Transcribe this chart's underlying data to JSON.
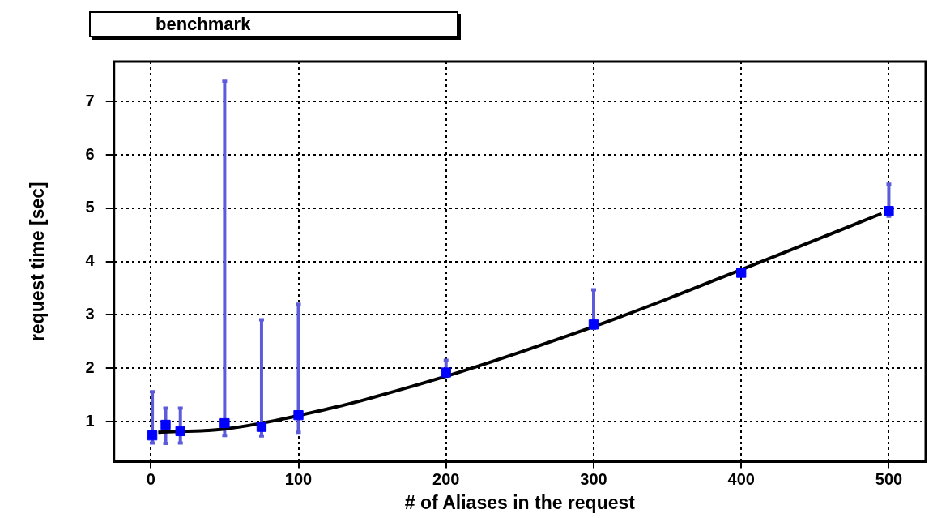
{
  "chart_data": {
    "type": "scatter",
    "title": "benchmark",
    "xlabel": "# of Aliases in the request",
    "ylabel": "request time [sec]",
    "xlim": [
      -25,
      525
    ],
    "xticks": [
      0,
      100,
      200,
      300,
      400,
      500
    ],
    "ylim": [
      0.25,
      7.75
    ],
    "yticks": [
      1,
      2,
      3,
      4,
      5,
      6,
      7
    ],
    "grid": true,
    "legend": false,
    "marker": "square",
    "series": [
      {
        "color": "#0000ff",
        "x": [
          1,
          10,
          20,
          50,
          75,
          100,
          200,
          300,
          400,
          500
        ],
        "values": [
          0.74,
          0.94,
          0.82,
          0.97,
          0.9,
          1.12,
          1.92,
          2.82,
          3.79,
          4.95
        ],
        "errors": [
          [
            0.6,
            1.56
          ],
          [
            0.59,
            1.25
          ],
          [
            0.6,
            1.25
          ],
          [
            0.74,
            7.38
          ],
          [
            0.73,
            2.91
          ],
          [
            0.8,
            3.2
          ],
          [
            1.85,
            2.15
          ],
          [
            2.75,
            3.47
          ],
          [
            3.75,
            3.85
          ],
          [
            4.85,
            5.45
          ]
        ]
      },
      {
        "type": "line",
        "color": "#000000",
        "marker": "none",
        "line_style": "solid",
        "x": [
          5,
          50,
          125,
          150,
          200,
          250,
          300,
          350,
          400,
          450,
          495
        ],
        "values": [
          0.8,
          0.86,
          1.27,
          1.45,
          1.85,
          2.3,
          2.78,
          3.3,
          3.85,
          4.4,
          4.9
        ]
      }
    ]
  }
}
